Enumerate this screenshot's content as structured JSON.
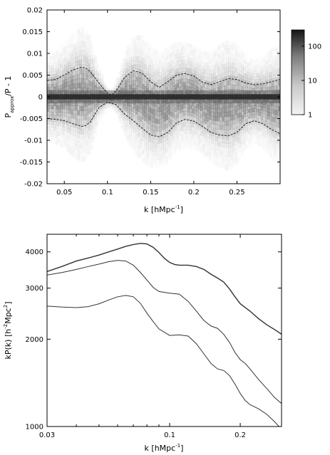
{
  "chart_data": [
    {
      "type": "heatmap",
      "xlabel": "k [hMpc",
      "xlabel_sup": "-1",
      "xlabel_end": "]",
      "ylabel_main": "P",
      "ylabel_sub": "approx",
      "ylabel_end": "/P - 1",
      "xlim": [
        0.03,
        0.3
      ],
      "ylim": [
        -0.02,
        0.02
      ],
      "x_ticks": [
        0.05,
        0.1,
        0.15,
        0.2,
        0.25
      ],
      "x_tick_labels": [
        "0.05",
        "0.1",
        "0.15",
        "0.2",
        "0.25"
      ],
      "y_ticks": [
        -0.02,
        -0.015,
        -0.01,
        -0.005,
        0,
        0.005,
        0.01,
        0.015,
        0.02
      ],
      "y_tick_labels": [
        "-0.02",
        "-0.015",
        "-0.01",
        "-0.005",
        "0",
        "0.005",
        "0.01",
        "0.015",
        "0.02"
      ],
      "colorbar": {
        "scale": "log",
        "range": [
          1,
          300
        ],
        "ticks": [
          1,
          10,
          100
        ],
        "tick_labels": [
          "1",
          "10",
          "100"
        ]
      },
      "upper_envelope": {
        "x": [
          0.03,
          0.04,
          0.05,
          0.06,
          0.07,
          0.075,
          0.08,
          0.09,
          0.1,
          0.105,
          0.11,
          0.12,
          0.13,
          0.14,
          0.15,
          0.16,
          0.17,
          0.18,
          0.19,
          0.2,
          0.21,
          0.22,
          0.23,
          0.24,
          0.25,
          0.26,
          0.27,
          0.28,
          0.29,
          0.3
        ],
        "y": [
          0.0038,
          0.004,
          0.005,
          0.0062,
          0.0068,
          0.0066,
          0.0058,
          0.0032,
          0.0008,
          0.0004,
          0.0014,
          0.0045,
          0.006,
          0.0055,
          0.0035,
          0.0022,
          0.0035,
          0.005,
          0.0054,
          0.0048,
          0.0034,
          0.0028,
          0.0035,
          0.0042,
          0.004,
          0.0032,
          0.0028,
          0.003,
          0.0035,
          0.004
        ]
      },
      "lower_envelope": {
        "x": [
          0.03,
          0.04,
          0.05,
          0.06,
          0.07,
          0.075,
          0.08,
          0.09,
          0.1,
          0.11,
          0.12,
          0.13,
          0.14,
          0.15,
          0.16,
          0.17,
          0.18,
          0.19,
          0.2,
          0.21,
          0.22,
          0.23,
          0.24,
          0.25,
          0.26,
          0.27,
          0.28,
          0.29,
          0.3
        ],
        "y": [
          -0.005,
          -0.0052,
          -0.0055,
          -0.0062,
          -0.0068,
          -0.0066,
          -0.0058,
          -0.0025,
          -0.0012,
          -0.0018,
          -0.004,
          -0.0055,
          -0.0072,
          -0.0088,
          -0.0092,
          -0.0082,
          -0.006,
          -0.0052,
          -0.0056,
          -0.0068,
          -0.0082,
          -0.0088,
          -0.009,
          -0.0082,
          -0.0062,
          -0.0055,
          -0.0062,
          -0.0075,
          -0.0085
        ]
      }
    },
    {
      "type": "line",
      "xlabel": "k [hMpc",
      "xlabel_sup": "-1",
      "xlabel_end": "]",
      "ylabel": "kP(k) [h",
      "ylabel_sup1": "-2",
      "ylabel_mid": "Mpc",
      "ylabel_sup2": "2",
      "ylabel_end": "]",
      "x_scale": "log",
      "y_scale": "log",
      "xlim": [
        0.03,
        0.3
      ],
      "ylim": [
        1000,
        4600
      ],
      "x_ticks": [
        0.03,
        0.1,
        0.2
      ],
      "x_tick_labels": [
        "0.03",
        "0.1",
        "0.2"
      ],
      "y_ticks": [
        1000,
        2000,
        3000,
        4000
      ],
      "y_tick_labels": [
        "1000",
        "2000",
        "3000",
        "4000"
      ],
      "series": [
        {
          "x": [
            0.03,
            0.035,
            0.04,
            0.045,
            0.05,
            0.055,
            0.06,
            0.065,
            0.07,
            0.075,
            0.08,
            0.085,
            0.09,
            0.095,
            0.1,
            0.105,
            0.11,
            0.115,
            0.12,
            0.13,
            0.14,
            0.15,
            0.16,
            0.17,
            0.18,
            0.19,
            0.2,
            0.22,
            0.24,
            0.26,
            0.28,
            0.3
          ],
          "y": [
            3420,
            3570,
            3720,
            3810,
            3900,
            4000,
            4090,
            4180,
            4240,
            4280,
            4260,
            4150,
            3980,
            3800,
            3680,
            3620,
            3600,
            3600,
            3600,
            3560,
            3480,
            3350,
            3250,
            3150,
            2980,
            2800,
            2650,
            2500,
            2350,
            2240,
            2160,
            2080
          ]
        },
        {
          "x": [
            0.03,
            0.035,
            0.04,
            0.045,
            0.05,
            0.055,
            0.06,
            0.065,
            0.07,
            0.075,
            0.08,
            0.085,
            0.09,
            0.1,
            0.11,
            0.12,
            0.13,
            0.14,
            0.15,
            0.16,
            0.17,
            0.18,
            0.19,
            0.2,
            0.21,
            0.22,
            0.24,
            0.26,
            0.28,
            0.3
          ],
          "y": [
            3330,
            3400,
            3480,
            3560,
            3630,
            3700,
            3740,
            3720,
            3600,
            3400,
            3200,
            3020,
            2920,
            2880,
            2860,
            2700,
            2500,
            2320,
            2220,
            2180,
            2080,
            1950,
            1800,
            1700,
            1650,
            1580,
            1450,
            1350,
            1260,
            1200
          ]
        },
        {
          "x": [
            0.03,
            0.035,
            0.04,
            0.045,
            0.05,
            0.055,
            0.06,
            0.065,
            0.07,
            0.075,
            0.08,
            0.085,
            0.09,
            0.1,
            0.11,
            0.12,
            0.13,
            0.14,
            0.15,
            0.16,
            0.17,
            0.18,
            0.19,
            0.2,
            0.21,
            0.22,
            0.24,
            0.26,
            0.28,
            0.3
          ],
          "y": [
            2600,
            2580,
            2570,
            2590,
            2650,
            2730,
            2800,
            2830,
            2800,
            2660,
            2460,
            2300,
            2170,
            2060,
            2070,
            2050,
            1930,
            1780,
            1650,
            1580,
            1560,
            1500,
            1400,
            1300,
            1230,
            1190,
            1150,
            1100,
            1040,
            980
          ]
        }
      ]
    }
  ],
  "colors": {
    "line": "#333333",
    "axes": "#000000",
    "density_dark": "#141414",
    "density_light": "#f4f4f4"
  }
}
